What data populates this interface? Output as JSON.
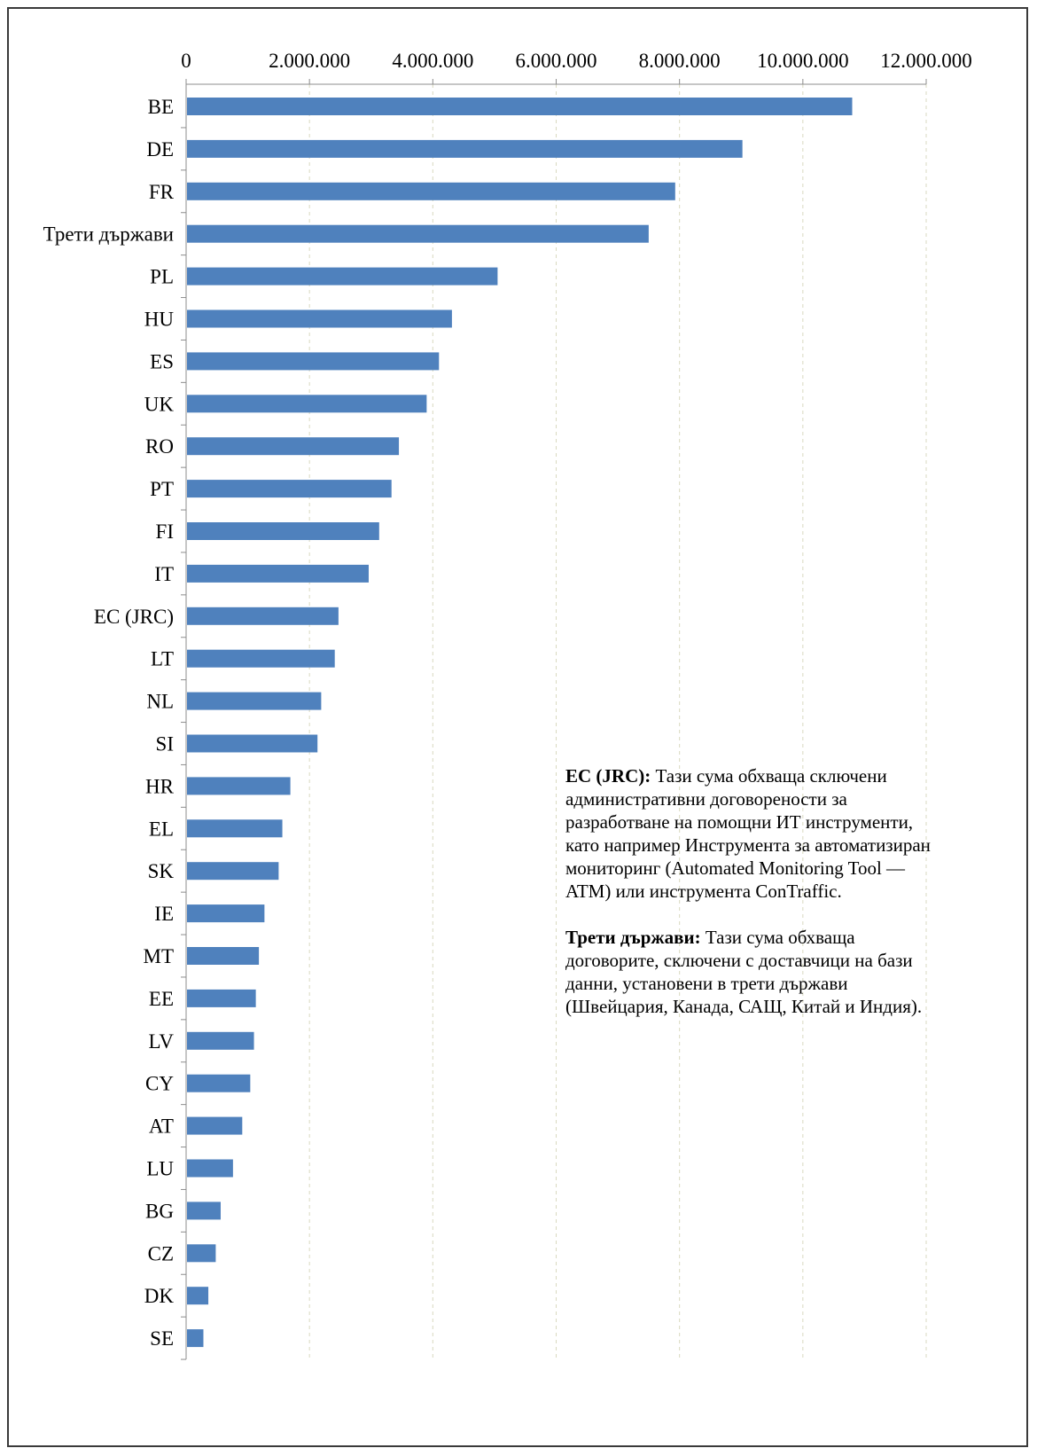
{
  "chart_data": {
    "type": "bar",
    "orientation": "horizontal",
    "categories": [
      "BE",
      "DE",
      "FR",
      "Трети държави",
      "PL",
      "HU",
      "ES",
      "UK",
      "RO",
      "PT",
      "FI",
      "IT",
      "EC (JRC)",
      "LT",
      "NL",
      "SI",
      "HR",
      "EL",
      "SK",
      "IE",
      "MT",
      "EE",
      "LV",
      "CY",
      "AT",
      "LU",
      "BG",
      "CZ",
      "DK",
      "SE"
    ],
    "values": [
      10800000,
      9020000,
      7930000,
      7500000,
      5050000,
      4310000,
      4100000,
      3900000,
      3450000,
      3330000,
      3130000,
      2960000,
      2470000,
      2410000,
      2190000,
      2130000,
      1690000,
      1560000,
      1500000,
      1270000,
      1180000,
      1130000,
      1100000,
      1040000,
      910000,
      760000,
      560000,
      480000,
      360000,
      280000
    ],
    "xlim": [
      0,
      12000000
    ],
    "xticks": [
      0,
      2000000,
      4000000,
      6000000,
      8000000,
      10000000,
      12000000
    ],
    "xtick_labels": [
      "0",
      "2.000.000",
      "4.000.000",
      "6.000.000",
      "8.000.000",
      "10.000.000",
      "12.000.000"
    ],
    "x_axis_position": "top",
    "grid": "vertical dashed",
    "bar_color": "#4f81bd",
    "title": "",
    "xlabel": "",
    "ylabel": ""
  },
  "notes": [
    {
      "term": "ЕС (JRC):",
      "text": " Тази сума обхваща сключени административни договорености за разработване на помощни ИТ инструменти, като например Инструмента за автоматизиран мониторинг (Automated Monitoring Tool — ATM) или инструмента ConTraffic."
    },
    {
      "term": "Трети държави:",
      "text": " Тази сума обхваща договорите, сключени с доставчици на бази данни, установени в трети държави (Швейцария, Канада, САЩ, Китай и Индия)."
    }
  ]
}
